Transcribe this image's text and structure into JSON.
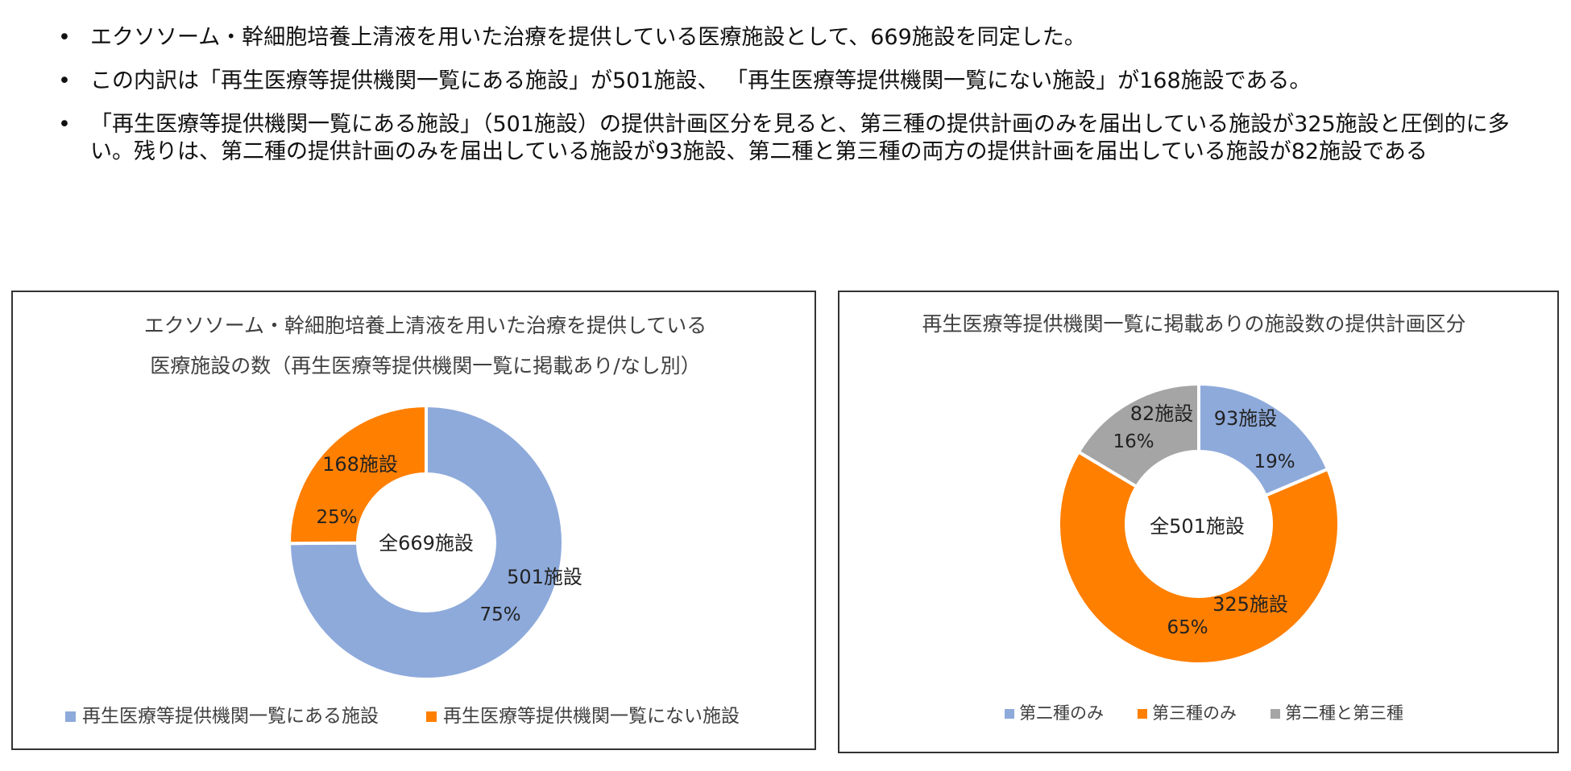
{
  "bullets": [
    "エクソソーム・幹細胞培養上清液を用いた治療を提供している医療施設として、669施設を同定した。",
    "この内訳は「再生医療等提供機関一覧にある施設」が501施設、 「再生医療等提供機関一覧にない施設」が168施設である。",
    "「再生医療等提供機関一覧にある施設」（501施設）の提供計画区分を見ると、第三種の提供計画のみを届出している施設が325施設と圧倒的に多い。残りは、第二種の提供計画のみを届出している施設が93施設、第二種と第三種の両方の提供計画を届出している施設が82施設である"
  ],
  "chart_data": [
    {
      "type": "pie",
      "variant": "donut",
      "title_lines": [
        "エクソソーム・幹細胞培養上清液を用いた治療を提供している",
        "医療施設の数（再生医療等提供機関一覧に掲載あり/なし別）"
      ],
      "center_label": "全669施設",
      "legend_placement": "bottom",
      "slices": [
        {
          "name": "再生医療等提供機関一覧にある施設",
          "value": 501,
          "count_label": "501施設",
          "percent_label": "75%",
          "color": "#8eaadb"
        },
        {
          "name": "再生医療等提供機関一覧にない施設",
          "value": 168,
          "count_label": "168施設",
          "percent_label": "25%",
          "color": "#ff7f00"
        }
      ]
    },
    {
      "type": "pie",
      "variant": "donut",
      "title_lines": [
        "再生医療等提供機関一覧に掲載ありの施設数の提供計画区分"
      ],
      "center_label": "全501施設",
      "legend_placement": "bottom",
      "slices": [
        {
          "name": "第二種のみ",
          "value": 93,
          "count_label": "93施設",
          "percent_label": "19%",
          "color": "#8eaadb"
        },
        {
          "name": "第三種のみ",
          "value": 325,
          "count_label": "325施設",
          "percent_label": "65%",
          "color": "#ff7f00"
        },
        {
          "name": "第二種と第三種",
          "value": 82,
          "count_label": "82施設",
          "percent_label": "16%",
          "color": "#a5a5a5"
        }
      ]
    }
  ]
}
